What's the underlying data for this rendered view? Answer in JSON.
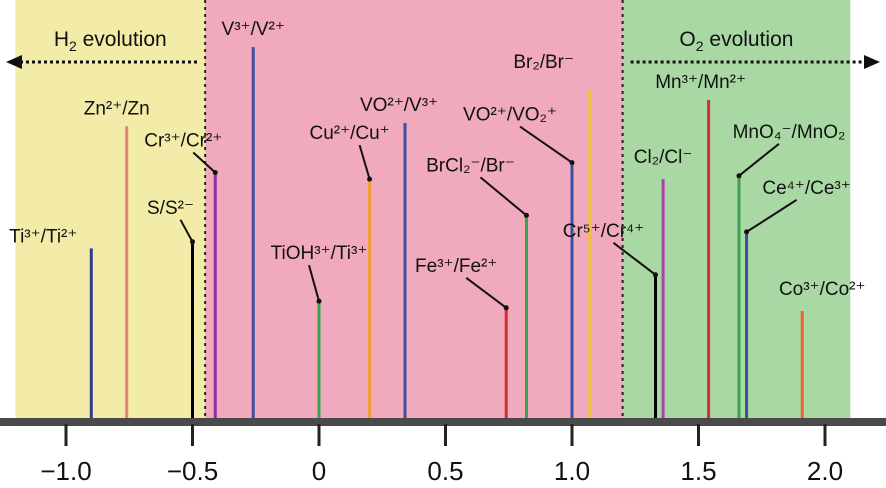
{
  "chart_data": {
    "type": "line",
    "xlim": [
      -1.2,
      2.1
    ],
    "ticks": [
      -1.0,
      -0.5,
      0,
      0.5,
      1.0,
      1.5,
      2.0
    ],
    "tick_labels": [
      "−1.0",
      "−0.5",
      "0",
      "0.5",
      "1.0",
      "1.5",
      "2.0"
    ],
    "regions": [
      {
        "label_pre": "H",
        "label_sub": "2",
        "label_post": " evolution",
        "from": -1.2,
        "to": -0.45,
        "color": "#f2eca8",
        "arrow": "left"
      },
      {
        "label_pre": "",
        "label_sub": "",
        "label_post": "",
        "from": -0.45,
        "to": 1.2,
        "color": "#f0a9bd",
        "arrow": "none"
      },
      {
        "label_pre": "O",
        "label_sub": "2",
        "label_post": " evolution",
        "from": 1.2,
        "to": 2.1,
        "color": "#a9d8a4",
        "arrow": "right"
      }
    ],
    "couples": [
      {
        "label": "Ti³⁺/Ti²⁺",
        "x": -0.9,
        "height": 0.52,
        "color": "#2f3f8f"
      },
      {
        "label": "Zn²⁺/Zn",
        "x": -0.76,
        "height": 0.89,
        "color": "#f07a7a"
      },
      {
        "label": "S/S²⁻",
        "x": -0.5,
        "height": 0.54,
        "color": "#000000"
      },
      {
        "label": "Cr³⁺/Cr²⁺",
        "x": -0.41,
        "height": 0.75,
        "color": "#8f2fa0"
      },
      {
        "label": "V³⁺/V²⁺",
        "x": -0.26,
        "height": 1.13,
        "color": "#3f4fa0"
      },
      {
        "label": "TiOH³⁺/Ti³⁺",
        "x": 0.0,
        "height": 0.36,
        "color": "#3f9f4f"
      },
      {
        "label": "Cu²⁺/Cu⁺",
        "x": 0.2,
        "height": 0.73,
        "color": "#f0a030"
      },
      {
        "label": "VO²⁺/V³⁺",
        "x": 0.34,
        "height": 0.9,
        "color": "#3f4fa0"
      },
      {
        "label": "Fe³⁺/Fe²⁺",
        "x": 0.74,
        "height": 0.34,
        "color": "#d03030"
      },
      {
        "label": "BrCl₂⁻/Br⁻",
        "x": 0.82,
        "height": 0.62,
        "color": "#3f9f4f"
      },
      {
        "label": "VO²⁺/VO₂⁺",
        "x": 1.0,
        "height": 0.78,
        "color": "#3f4fa0"
      },
      {
        "label": "Br₂/Br⁻",
        "x": 1.07,
        "height": 1.0,
        "color": "#f0c040"
      },
      {
        "label": "Cr⁵⁺/Cr⁴⁺",
        "x": 1.33,
        "height": 0.44,
        "color": "#000000"
      },
      {
        "label": "Cl₂/Cl⁻",
        "x": 1.36,
        "height": 0.73,
        "color": "#b03fb0"
      },
      {
        "label": "Mn³⁺/Mn²⁺",
        "x": 1.54,
        "height": 0.97,
        "color": "#d03030"
      },
      {
        "label": "MnO₄⁻/MnO₂",
        "x": 1.66,
        "height": 0.74,
        "color": "#3f9f4f"
      },
      {
        "label": "Ce⁴⁺/Ce³⁺",
        "x": 1.69,
        "height": 0.57,
        "color": "#3f4fa0"
      },
      {
        "label": "Co³⁺/Co²⁺",
        "x": 1.91,
        "height": 0.33,
        "color": "#f06030"
      }
    ]
  }
}
